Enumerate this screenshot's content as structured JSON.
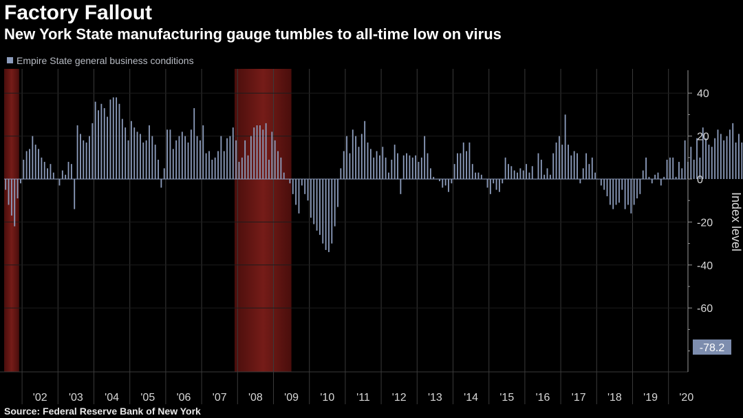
{
  "chart_data": {
    "type": "bar",
    "title": "Factory Fallout",
    "subtitle": "New York State manufacturing gauge tumbles to all-time low on virus",
    "source": "Source: Federal Reserve Bank of New York",
    "series_name": "Empire State general business conditions",
    "ylabel": "Index level",
    "ylim": [
      -90,
      50
    ],
    "yticks": [
      40,
      20,
      0,
      -20,
      -40,
      -60
    ],
    "year_labels": [
      "'02",
      "'03",
      "'04",
      "'05",
      "'06",
      "'07",
      "'08",
      "'09",
      "'10",
      "'11",
      "'12",
      "'13",
      "'14",
      "'15",
      "'16",
      "'17",
      "'18",
      "'19",
      "'20"
    ],
    "start_date": "2001-07",
    "latest_value": -78.2,
    "latest_label": "-78.2",
    "recessions": [
      {
        "start": "2001-07",
        "end": "2001-11"
      },
      {
        "start": "2007-12",
        "end": "2009-06"
      }
    ],
    "monthly_values": [
      -5,
      -12,
      -17,
      -22,
      -9,
      -2,
      9,
      13,
      14,
      20,
      16,
      14,
      10,
      8,
      5,
      7,
      3,
      0,
      -3,
      4,
      2,
      8,
      7,
      -14,
      25,
      21,
      18,
      17,
      20,
      26,
      36,
      32,
      35,
      33,
      29,
      37,
      38,
      38,
      35,
      28,
      24,
      18,
      27,
      24,
      22,
      21,
      17,
      18,
      25,
      20,
      16,
      9,
      -4,
      5,
      23,
      23,
      14,
      18,
      20,
      22,
      20,
      17,
      23,
      33,
      20,
      18,
      25,
      12,
      13,
      9,
      10,
      13,
      20,
      13,
      19,
      20,
      24,
      18,
      8,
      10,
      18,
      11,
      20,
      24,
      25,
      25,
      23,
      26,
      9,
      22,
      18,
      13,
      10,
      3,
      0,
      -2,
      -7,
      -12,
      -16,
      -3,
      -7,
      -10,
      -18,
      -21,
      -24,
      -26,
      -30,
      -33,
      -34,
      -30,
      -22,
      -13,
      5,
      13,
      20,
      12,
      23,
      20,
      15,
      21,
      27,
      17,
      14,
      10,
      13,
      11,
      15,
      10,
      3,
      9,
      16,
      12,
      -7,
      11,
      12,
      11,
      10,
      11,
      8,
      10,
      20,
      12,
      5,
      1,
      0,
      -1,
      -4,
      -3,
      -6,
      -2,
      7,
      12,
      12,
      17,
      13,
      17,
      7,
      3,
      3,
      2,
      0,
      -4,
      -7,
      -2,
      -5,
      -6,
      -2,
      10,
      7,
      6,
      4,
      3,
      5,
      4,
      7,
      3,
      6,
      0,
      12,
      9,
      2,
      5,
      2,
      12,
      17,
      20,
      16,
      30,
      16,
      11,
      13,
      12,
      -2,
      5,
      12,
      7,
      10,
      3,
      0,
      -3,
      -5,
      -8,
      -12,
      -14,
      -12,
      -11,
      -5,
      -14,
      -12,
      -16,
      -12,
      -9,
      -7,
      4,
      10,
      1,
      -2,
      2,
      3,
      -3,
      1,
      9,
      10,
      10,
      1,
      8,
      5,
      18,
      8,
      15,
      9,
      19,
      10,
      24,
      19,
      16,
      15,
      19,
      23,
      21,
      18,
      20,
      23,
      26,
      17,
      21,
      17,
      19,
      22,
      18,
      26,
      24,
      18,
      22,
      25,
      19,
      20,
      20,
      21,
      22,
      18,
      8,
      10,
      10,
      10,
      3,
      10,
      12,
      2,
      -2,
      1,
      0,
      -6,
      4,
      4,
      2,
      3,
      4,
      4,
      4,
      3,
      5,
      4,
      13,
      -78.2
    ]
  }
}
